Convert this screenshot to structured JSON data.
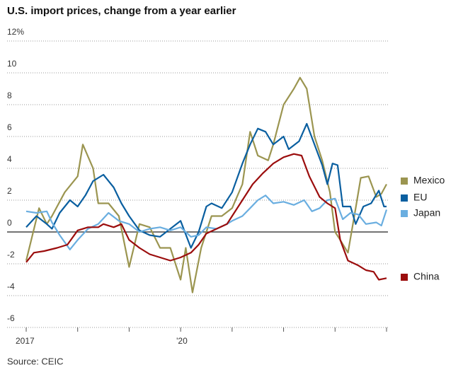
{
  "chart_data": {
    "type": "line",
    "title": "U.S. import prices, change from a year earlier",
    "source": "Source: CEIC",
    "ylim": [
      -6,
      12
    ],
    "yticks": [
      {
        "value": 12,
        "label": "12%"
      },
      10,
      8,
      6,
      4,
      2,
      0,
      -2,
      -4,
      -6
    ],
    "xlim": [
      2017,
      2024
    ],
    "xticks": [
      2017,
      {
        "value": 2018,
        "label": null
      },
      {
        "value": 2019,
        "label": null
      },
      {
        "value": 2020,
        "label": "'20"
      },
      {
        "value": 2021,
        "label": null
      },
      {
        "value": 2022,
        "label": null
      },
      {
        "value": 2023,
        "label": null
      },
      {
        "value": 2024,
        "label": null
      }
    ],
    "grid": true,
    "series": [
      {
        "name": "Mexico",
        "color": "#9b9550",
        "x": [
          2017.0,
          2017.25,
          2017.4,
          2017.5,
          2017.75,
          2018.0,
          2018.1,
          2018.3,
          2018.4,
          2018.6,
          2018.8,
          2019.0,
          2019.2,
          2019.4,
          2019.6,
          2019.8,
          2020.0,
          2020.1,
          2020.23,
          2020.4,
          2020.6,
          2020.8,
          2021.0,
          2021.2,
          2021.35,
          2021.5,
          2021.7,
          2021.8,
          2022.0,
          2022.2,
          2022.32,
          2022.45,
          2022.6,
          2022.75,
          2022.9,
          2023.0,
          2023.1,
          2023.25,
          2023.4,
          2023.5,
          2023.65,
          2023.8,
          2023.9,
          2024.0
        ],
        "values": [
          -1.8,
          1.5,
          0.5,
          1.0,
          2.5,
          3.5,
          5.5,
          4.0,
          1.8,
          1.8,
          1.0,
          -2.2,
          0.5,
          0.3,
          -1.0,
          -1.0,
          -3.0,
          -1.0,
          -3.8,
          -1.0,
          1.0,
          1.0,
          1.5,
          3.0,
          6.3,
          4.8,
          4.5,
          5.5,
          8.0,
          9.0,
          9.7,
          9.0,
          6.0,
          4.5,
          2.5,
          0.0,
          -0.5,
          -1.3,
          1.5,
          3.4,
          3.5,
          2.2,
          2.4,
          3.0
        ]
      },
      {
        "name": "EU",
        "color": "#0a5fa0",
        "x": [
          2017.0,
          2017.2,
          2017.4,
          2017.5,
          2017.65,
          2017.85,
          2018.0,
          2018.15,
          2018.3,
          2018.5,
          2018.7,
          2018.85,
          2019.0,
          2019.2,
          2019.4,
          2019.6,
          2019.8,
          2020.0,
          2020.2,
          2020.35,
          2020.5,
          2020.6,
          2020.8,
          2021.0,
          2021.2,
          2021.35,
          2021.5,
          2021.65,
          2021.8,
          2022.0,
          2022.1,
          2022.3,
          2022.45,
          2022.6,
          2022.75,
          2022.85,
          2022.95,
          2023.05,
          2023.15,
          2023.3,
          2023.4,
          2023.55,
          2023.7,
          2023.85,
          2023.95,
          2024.0
        ],
        "values": [
          0.3,
          1.0,
          0.5,
          0.2,
          1.2,
          2.0,
          1.6,
          2.3,
          3.2,
          3.6,
          2.8,
          1.8,
          1.0,
          0.1,
          -0.2,
          -0.3,
          0.2,
          0.7,
          -1.0,
          0.0,
          1.6,
          1.8,
          1.5,
          2.5,
          4.3,
          5.5,
          6.5,
          6.3,
          5.5,
          6.0,
          5.2,
          5.7,
          6.8,
          5.5,
          4.2,
          3.0,
          4.3,
          4.2,
          1.6,
          1.6,
          0.5,
          1.6,
          1.8,
          2.6,
          1.6,
          1.6
        ]
      },
      {
        "name": "Japan",
        "color": "#6aaee0",
        "x": [
          2017.0,
          2017.2,
          2017.4,
          2017.5,
          2017.65,
          2017.85,
          2018.0,
          2018.2,
          2018.4,
          2018.6,
          2018.8,
          2019.0,
          2019.2,
          2019.4,
          2019.6,
          2019.8,
          2020.0,
          2020.2,
          2020.35,
          2020.5,
          2020.7,
          2020.9,
          2021.0,
          2021.2,
          2021.35,
          2021.5,
          2021.65,
          2021.8,
          2022.0,
          2022.2,
          2022.4,
          2022.55,
          2022.7,
          2022.85,
          2023.0,
          2023.15,
          2023.3,
          2023.45,
          2023.6,
          2023.8,
          2023.9,
          2024.0
        ],
        "values": [
          1.3,
          1.2,
          1.3,
          0.6,
          -0.2,
          -1.1,
          -0.5,
          0.2,
          0.5,
          1.2,
          0.7,
          0.5,
          0.0,
          0.2,
          0.3,
          0.1,
          0.3,
          -0.3,
          -0.2,
          0.3,
          0.2,
          0.5,
          0.7,
          1.0,
          1.5,
          2.0,
          2.3,
          1.8,
          1.9,
          1.7,
          2.0,
          1.3,
          1.5,
          2.0,
          2.1,
          0.8,
          1.2,
          1.1,
          0.5,
          0.6,
          0.4,
          1.4
        ]
      },
      {
        "name": "China",
        "color": "#9b0d0d",
        "x": [
          2017.0,
          2017.15,
          2017.35,
          2017.6,
          2017.8,
          2018.0,
          2018.2,
          2018.4,
          2018.5,
          2018.7,
          2018.85,
          2019.0,
          2019.2,
          2019.4,
          2019.6,
          2019.8,
          2020.0,
          2020.2,
          2020.35,
          2020.5,
          2020.7,
          2020.9,
          2021.0,
          2021.2,
          2021.4,
          2021.6,
          2021.8,
          2022.0,
          2022.2,
          2022.35,
          2022.5,
          2022.7,
          2022.85,
          2023.0,
          2023.1,
          2023.25,
          2023.45,
          2023.6,
          2023.75,
          2023.85,
          2024.0
        ],
        "values": [
          -1.9,
          -1.3,
          -1.2,
          -1.0,
          -0.8,
          0.1,
          0.3,
          0.3,
          0.5,
          0.3,
          0.5,
          -0.5,
          -1.0,
          -1.4,
          -1.6,
          -1.8,
          -1.6,
          -1.3,
          -0.8,
          -0.1,
          0.2,
          0.5,
          1.0,
          2.0,
          3.0,
          3.7,
          4.3,
          4.7,
          4.9,
          4.8,
          3.5,
          2.2,
          1.8,
          1.5,
          -0.5,
          -1.8,
          -2.1,
          -2.4,
          -2.5,
          -3.0,
          -2.9
        ]
      }
    ]
  }
}
